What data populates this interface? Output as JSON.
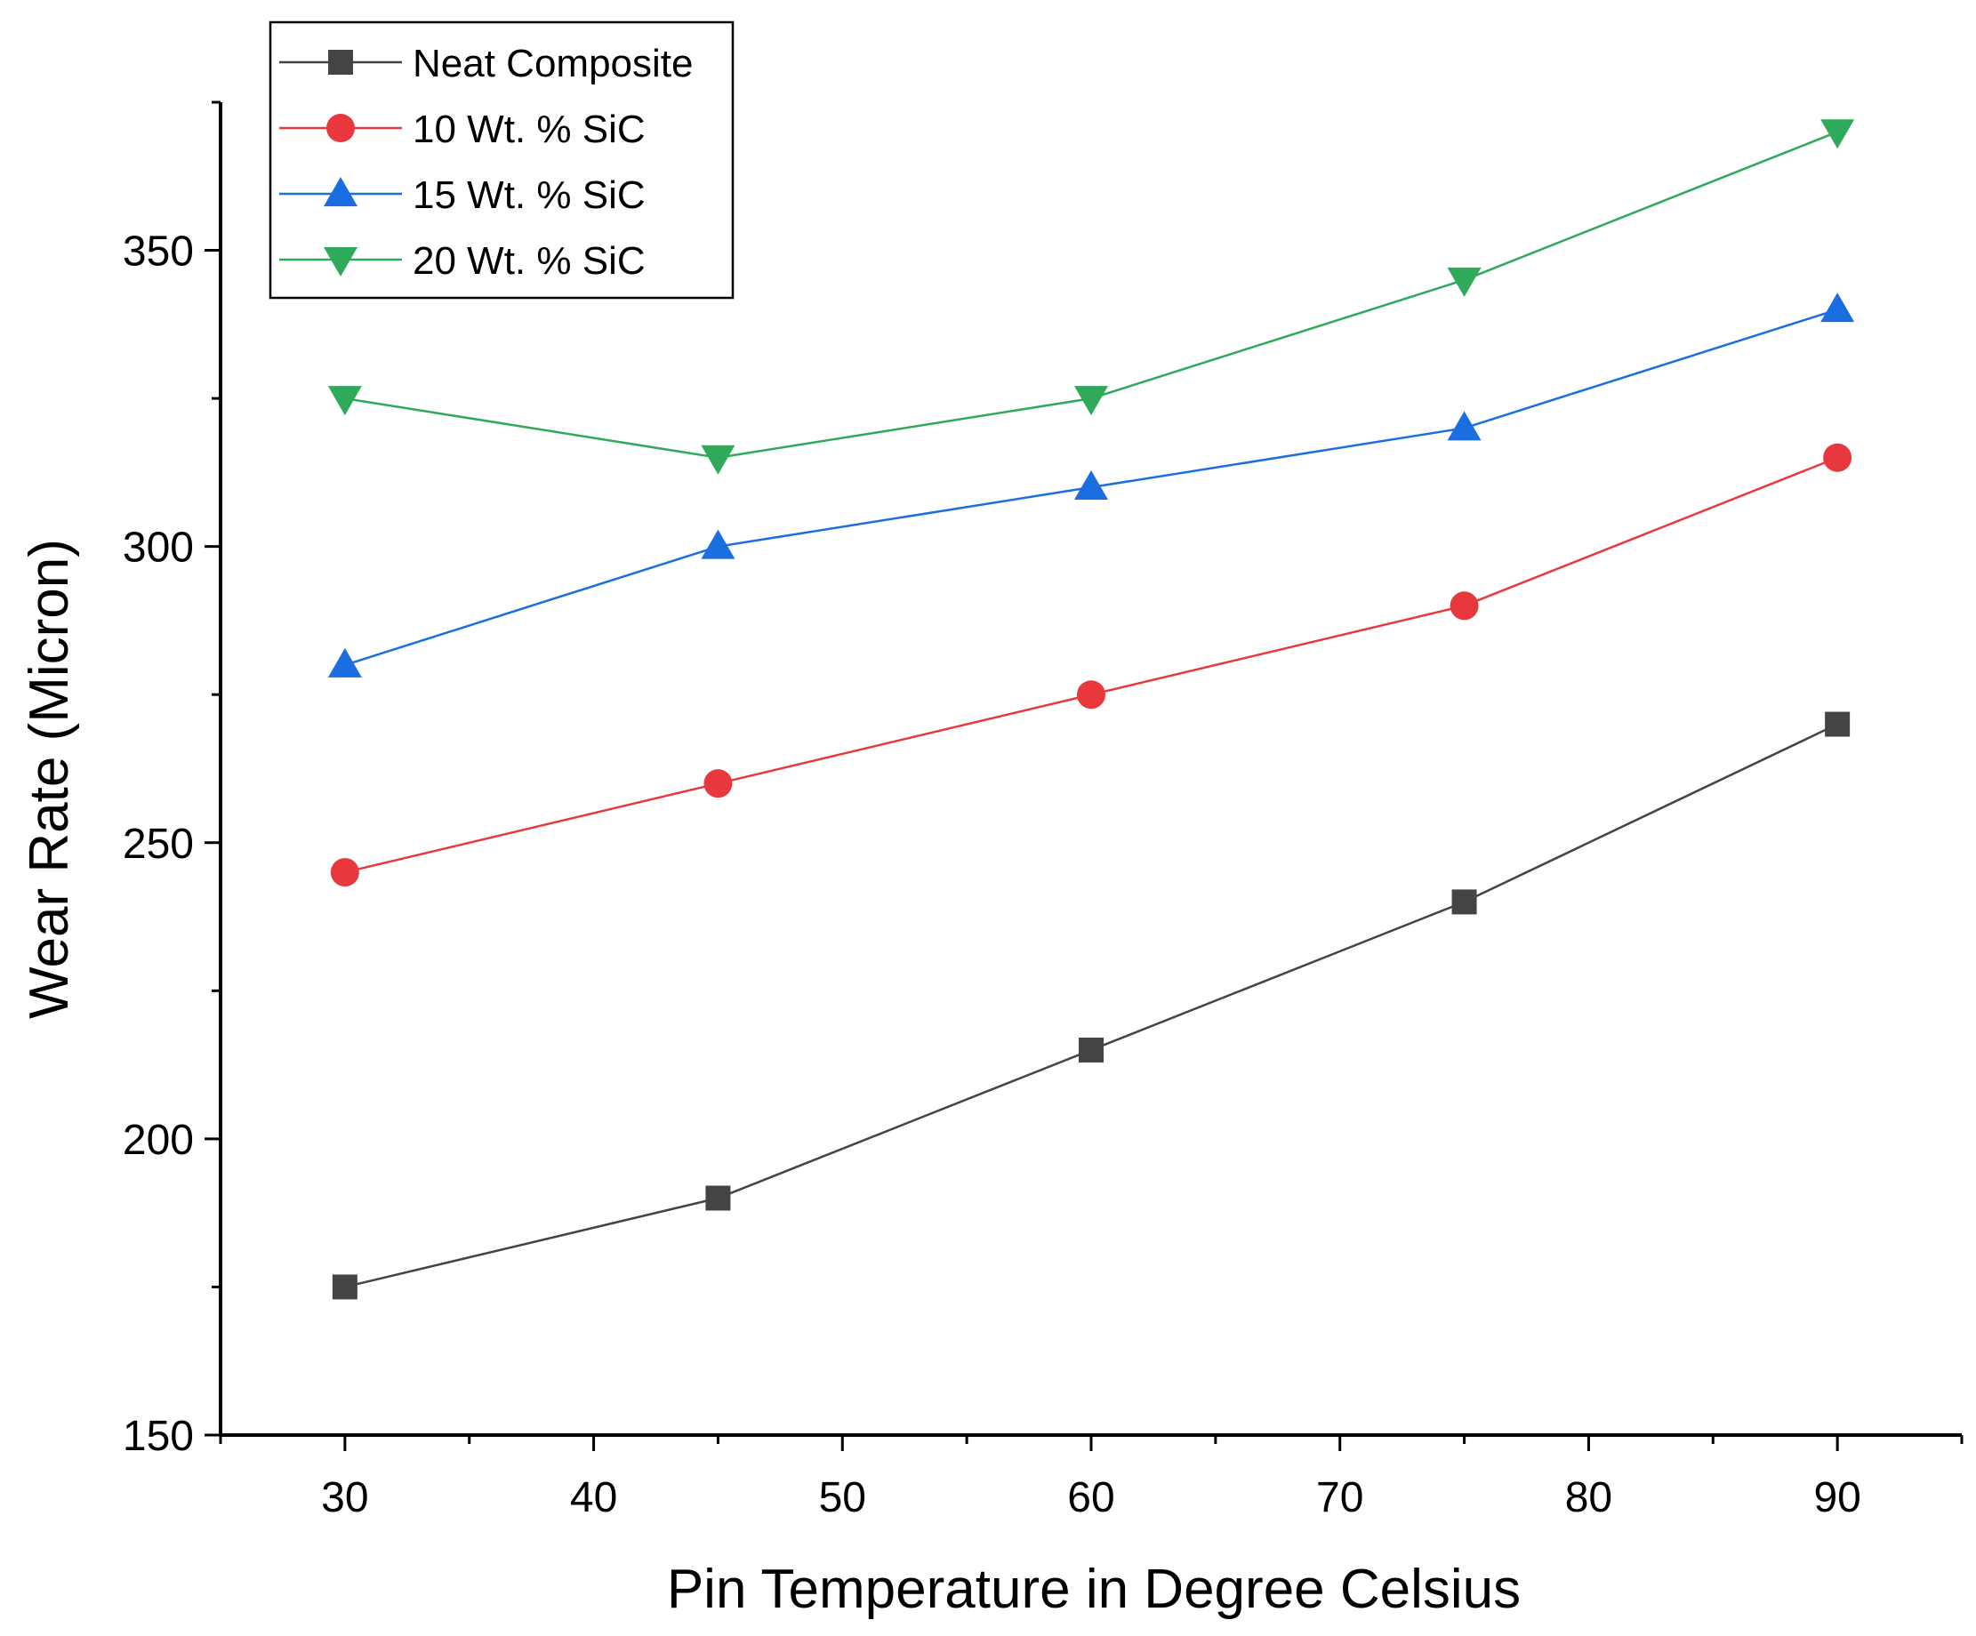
{
  "chart_data": {
    "type": "line",
    "title": "",
    "xlabel": "Pin Temperature in Degree Celsius",
    "ylabel": "Wear Rate (Micron)",
    "xlim": [
      25,
      95
    ],
    "ylim": [
      150,
      375
    ],
    "xticks": [
      30,
      40,
      50,
      60,
      70,
      80,
      90
    ],
    "yticks": [
      150,
      200,
      250,
      300,
      350
    ],
    "grid": false,
    "legend_position": "top-left",
    "x": [
      30,
      45,
      60,
      75,
      90
    ],
    "series": [
      {
        "name": "Neat Composite",
        "color": "#444444",
        "marker": "square",
        "values": [
          175,
          190,
          215,
          240,
          270
        ]
      },
      {
        "name": "10 Wt. % SiC",
        "color": "#e8383d",
        "marker": "circle",
        "values": [
          245,
          260,
          275,
          290,
          315
        ]
      },
      {
        "name": "15 Wt. % SiC",
        "color": "#1a6ee0",
        "marker": "triangle-up",
        "values": [
          280,
          300,
          310,
          320,
          340
        ]
      },
      {
        "name": "20 Wt. % SiC",
        "color": "#2eaa5a",
        "marker": "triangle-down",
        "values": [
          325,
          315,
          325,
          345,
          370
        ]
      }
    ]
  }
}
